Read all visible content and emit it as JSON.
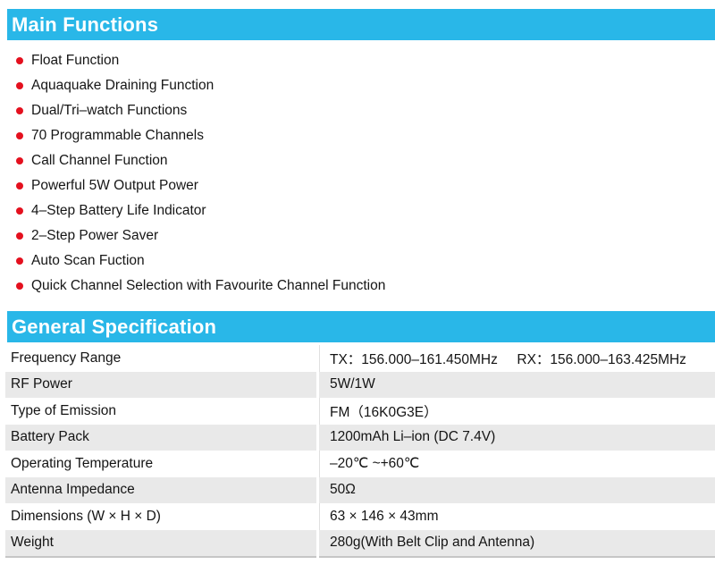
{
  "colors": {
    "header_blue": "#29b7e8",
    "bullet_red": "#e4101e",
    "row_shade": "#e9e9e9",
    "table_bottom_border": "#c6c6c6"
  },
  "main_functions": {
    "title": "Main Functions",
    "items": [
      "Float Function",
      "Aquaquake Draining Function",
      "Dual/Tri–watch Functions",
      "70 Programmable Channels",
      "Call Channel Function",
      "Powerful 5W Output Power",
      "4–Step Battery Life Indicator",
      "2–Step Power Saver",
      "Auto Scan Fuction",
      "Quick Channel Selection with Favourite Channel Function"
    ]
  },
  "general_specification": {
    "title": "General Specification",
    "rows": [
      {
        "label": "Frequency Range",
        "value": "TX：156.000–161.450MHz     RX：156.000–163.425MHz"
      },
      {
        "label": "RF Power",
        "value": "5W/1W"
      },
      {
        "label": "Type of Emission",
        "value": "FM（16K0G3E）"
      },
      {
        "label": "Battery Pack",
        "value": "1200mAh Li–ion (DC 7.4V)"
      },
      {
        "label": "Operating Temperature",
        "value": "–20℃ ~+60℃"
      },
      {
        "label": "Antenna Impedance",
        "value": "50Ω"
      },
      {
        "label": "Dimensions (W × H × D)",
        "value": "63 × 146 × 43mm"
      },
      {
        "label": "Weight",
        "value": "280g(With Belt Clip and Antenna)"
      }
    ]
  }
}
